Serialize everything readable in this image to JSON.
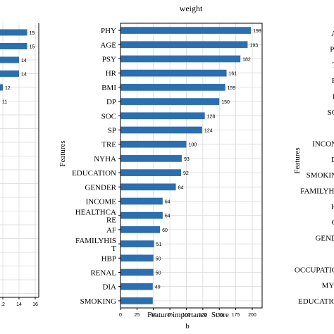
{
  "colors": {
    "bar": "#2b6fb0",
    "grid": "#d9d9d9",
    "axis": "#000000"
  },
  "left_panel": {
    "tick_labels": [
      "12",
      "14",
      "16"
    ],
    "bar_value_labels": [
      "15",
      "15",
      "14",
      "14",
      "12",
      "11"
    ]
  },
  "right_panel": {
    "ylabel": "Features",
    "feature_labels": [
      "A",
      "PI",
      "T",
      "B",
      "P",
      "SC",
      "I",
      "INCON",
      "D",
      "SMOKIN",
      "FAMILYHI",
      "H",
      "C",
      "GEND",
      "",
      "OCCUPATIC",
      "MYI",
      "EDUCATIO"
    ]
  },
  "chart_data": {
    "type": "bar",
    "orientation": "horizontal",
    "title": "weight",
    "xlabel": "Feature importance  Score",
    "ylabel": "Features",
    "panel_label": "b",
    "xlim": [
      0,
      215
    ],
    "x_ticks": [
      "0",
      "25",
      "50",
      "75",
      "100",
      "125",
      "150",
      "175",
      "200"
    ],
    "grid": true,
    "categories": [
      "PHY",
      "AGE",
      "PSY",
      "HR",
      "BMI",
      "DP",
      "SOC",
      "SP",
      "TRE",
      "NYHA",
      "EDUCATION",
      "GENDER",
      "INCOME",
      "HEALTHCARE",
      "AF",
      "FAMILYHIST",
      "HBP",
      "RENAL",
      "DIA",
      "SMOKING"
    ],
    "category_display": [
      "PHY",
      "AGE",
      "PSY",
      "HR",
      "BMI",
      "DP",
      "SOC",
      "SP",
      "TRE",
      "NYHA",
      "EDUCATION",
      "GENDER",
      "INCOME",
      "HEALTHCA|RE",
      "AF",
      "FAMILYHIS|T",
      "HBP",
      "RENAL",
      "DIA",
      "SMOKING"
    ],
    "values": [
      198,
      193,
      182,
      161,
      159,
      150,
      128,
      124,
      100,
      93,
      92,
      84,
      64,
      64,
      60,
      51,
      50,
      50,
      49,
      49
    ],
    "value_labels": [
      "198",
      "193",
      "182",
      "161",
      "159",
      "150",
      "128",
      "124",
      "100",
      "93",
      "92",
      "84",
      "64",
      "64",
      "60",
      "51",
      "50",
      "50",
      "49",
      ""
    ]
  }
}
